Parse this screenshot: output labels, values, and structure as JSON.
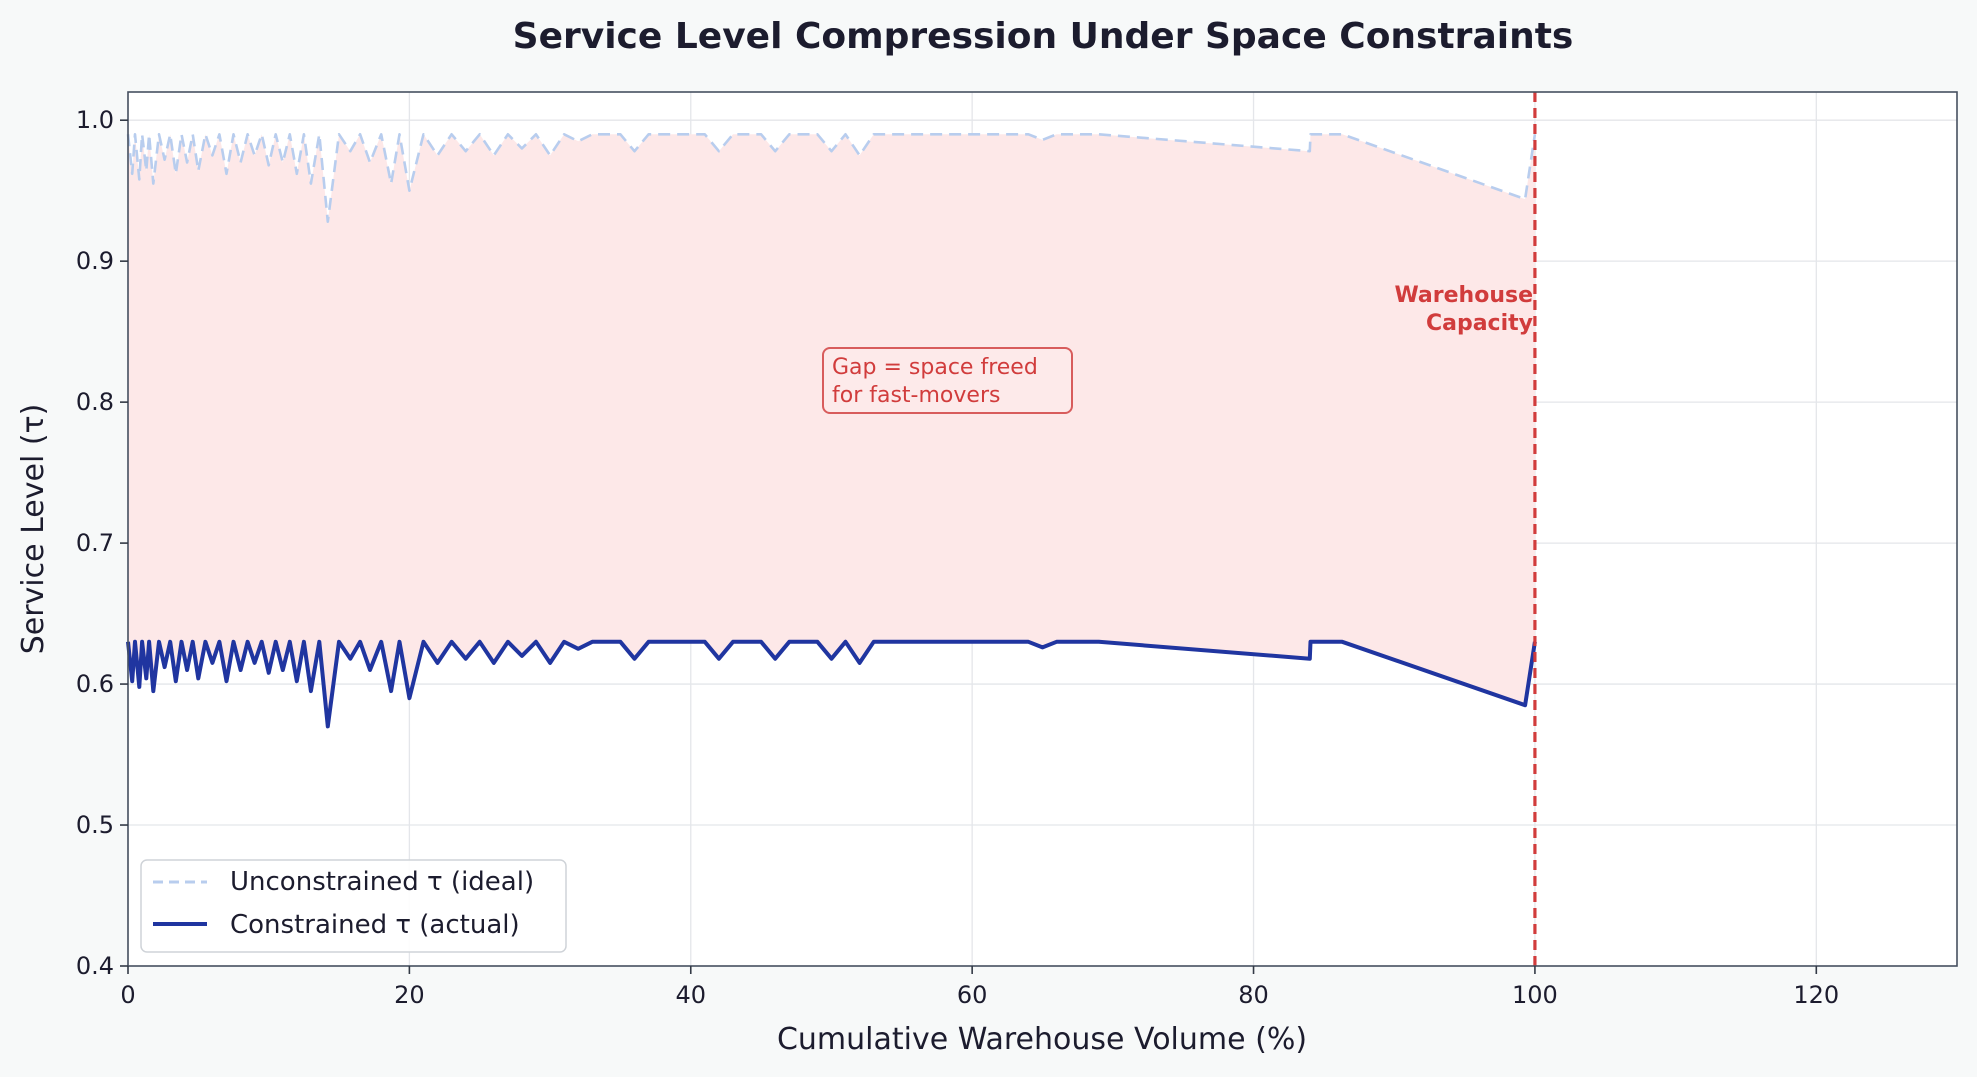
{
  "chart_data": {
    "type": "line",
    "title": "Service Level Compression Under Space Constraints",
    "xlabel": "Cumulative Warehouse Volume (%)",
    "ylabel": "Service Level (τ)",
    "xlim": [
      0,
      130
    ],
    "ylim": [
      0.4,
      1.02
    ],
    "xticks": [
      0,
      20,
      40,
      60,
      80,
      100,
      120
    ],
    "xtick_labels": [
      "0",
      "20",
      "40",
      "60",
      "80",
      "100",
      "120"
    ],
    "yticks": [
      0.4,
      0.5,
      0.6,
      0.7,
      0.8,
      0.9,
      1.0
    ],
    "ytick_labels": [
      "0.4",
      "0.5",
      "0.6",
      "0.7",
      "0.8",
      "0.9",
      "1.0"
    ],
    "grid": true,
    "legend_position": "lower-left",
    "series": [
      {
        "name": "Unconstrained τ (ideal)",
        "style": "dashed",
        "color": "#b8cdee",
        "x": [
          0,
          0.3,
          0.5,
          0.8,
          1.0,
          1.3,
          1.5,
          1.8,
          2.2,
          2.6,
          3.0,
          3.4,
          3.8,
          4.2,
          4.6,
          5.0,
          5.5,
          6.0,
          6.5,
          7.0,
          7.5,
          8.0,
          8.5,
          9.0,
          9.5,
          10.0,
          10.5,
          11.0,
          11.5,
          12.0,
          12.5,
          13.0,
          13.6,
          14.2,
          15.0,
          15.8,
          16.5,
          17.2,
          18.0,
          18.7,
          19.3,
          20.0,
          21.0,
          22.0,
          23.0,
          24.0,
          25.0,
          26.0,
          27.0,
          28.0,
          29.0,
          30.0,
          31.0,
          32.0,
          33.0,
          34.0,
          35.0,
          36.0,
          37.0,
          38.0,
          39.0,
          40.0,
          41.0,
          42.0,
          43.0,
          44.0,
          45.0,
          46.0,
          47.0,
          48.0,
          49.0,
          50.0,
          51.0,
          52.0,
          53.0,
          55.0,
          57.0,
          59.0,
          61.0,
          62.5,
          64.0,
          65.0,
          66.0,
          69.0,
          84.0,
          84.05,
          86.3,
          99.3,
          100.0
        ],
        "y": [
          0.99,
          0.962,
          0.99,
          0.958,
          0.99,
          0.964,
          0.99,
          0.955,
          0.99,
          0.972,
          0.99,
          0.962,
          0.99,
          0.97,
          0.99,
          0.964,
          0.99,
          0.975,
          0.99,
          0.962,
          0.99,
          0.97,
          0.99,
          0.975,
          0.99,
          0.968,
          0.99,
          0.97,
          0.99,
          0.962,
          0.99,
          0.955,
          0.99,
          0.928,
          0.99,
          0.978,
          0.99,
          0.97,
          0.99,
          0.955,
          0.99,
          0.95,
          0.99,
          0.975,
          0.99,
          0.978,
          0.99,
          0.975,
          0.99,
          0.98,
          0.99,
          0.975,
          0.99,
          0.985,
          0.99,
          0.99,
          0.99,
          0.978,
          0.99,
          0.99,
          0.99,
          0.99,
          0.99,
          0.978,
          0.99,
          0.99,
          0.99,
          0.978,
          0.99,
          0.99,
          0.99,
          0.978,
          0.99,
          0.975,
          0.99,
          0.99,
          0.99,
          0.99,
          0.99,
          0.99,
          0.99,
          0.986,
          0.99,
          0.99,
          0.978,
          0.99,
          0.99,
          0.944,
          0.99
        ]
      },
      {
        "name": "Constrained τ (actual)",
        "style": "solid",
        "color": "#2035a0",
        "x": [
          0,
          0.3,
          0.5,
          0.8,
          1.0,
          1.3,
          1.5,
          1.8,
          2.2,
          2.6,
          3.0,
          3.4,
          3.8,
          4.2,
          4.6,
          5.0,
          5.5,
          6.0,
          6.5,
          7.0,
          7.5,
          8.0,
          8.5,
          9.0,
          9.5,
          10.0,
          10.5,
          11.0,
          11.5,
          12.0,
          12.5,
          13.0,
          13.6,
          14.2,
          15.0,
          15.8,
          16.5,
          17.2,
          18.0,
          18.7,
          19.3,
          20.0,
          21.0,
          22.0,
          23.0,
          24.0,
          25.0,
          26.0,
          27.0,
          28.0,
          29.0,
          30.0,
          31.0,
          32.0,
          33.0,
          34.0,
          35.0,
          36.0,
          37.0,
          38.0,
          39.0,
          40.0,
          41.0,
          42.0,
          43.0,
          44.0,
          45.0,
          46.0,
          47.0,
          48.0,
          49.0,
          50.0,
          51.0,
          52.0,
          53.0,
          55.0,
          57.0,
          59.0,
          61.0,
          62.5,
          64.0,
          65.0,
          66.0,
          69.0,
          84.0,
          84.05,
          86.3,
          99.3,
          100.0
        ],
        "y": [
          0.63,
          0.602,
          0.63,
          0.598,
          0.63,
          0.604,
          0.63,
          0.595,
          0.63,
          0.612,
          0.63,
          0.602,
          0.63,
          0.61,
          0.63,
          0.604,
          0.63,
          0.615,
          0.63,
          0.602,
          0.63,
          0.61,
          0.63,
          0.615,
          0.63,
          0.608,
          0.63,
          0.61,
          0.63,
          0.602,
          0.63,
          0.595,
          0.63,
          0.57,
          0.63,
          0.618,
          0.63,
          0.61,
          0.63,
          0.595,
          0.63,
          0.59,
          0.63,
          0.615,
          0.63,
          0.618,
          0.63,
          0.615,
          0.63,
          0.62,
          0.63,
          0.615,
          0.63,
          0.625,
          0.63,
          0.63,
          0.63,
          0.618,
          0.63,
          0.63,
          0.63,
          0.63,
          0.63,
          0.618,
          0.63,
          0.63,
          0.63,
          0.618,
          0.63,
          0.63,
          0.63,
          0.618,
          0.63,
          0.615,
          0.63,
          0.63,
          0.63,
          0.63,
          0.63,
          0.63,
          0.63,
          0.626,
          0.63,
          0.63,
          0.618,
          0.63,
          0.63,
          0.585,
          0.63
        ]
      }
    ],
    "gap_fill": {
      "between": "series",
      "x_max": 100,
      "color": "#fde8e8"
    },
    "reference_line": {
      "x": 100,
      "color": "#d13c3c",
      "label_lines": [
        "Warehouse",
        "Capacity"
      ]
    },
    "annotation": {
      "lines": [
        "Gap = space freed",
        "for fast-movers"
      ],
      "x": 50,
      "y": 0.802,
      "color": "#d13c3c"
    }
  }
}
